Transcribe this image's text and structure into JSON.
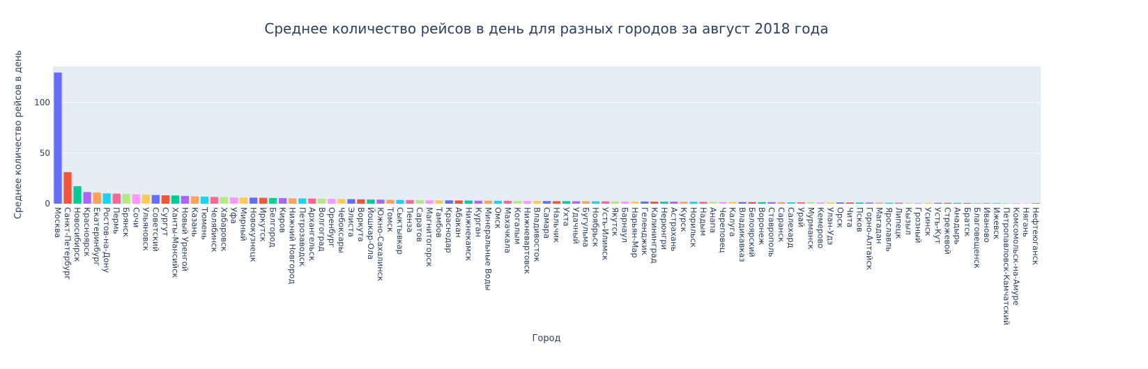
{
  "chart_data": {
    "type": "bar",
    "title": "Среднее количество рейсов в день для разных городов за август 2018 года",
    "xlabel": "Город",
    "ylabel": "Среднее количество рейсов в день",
    "ylim": [
      0,
      136
    ],
    "yticks": [
      0,
      50,
      100
    ],
    "grid": true,
    "legend": "none",
    "colors": [
      "#636efa",
      "#EF553B",
      "#00cc96",
      "#ab63fa",
      "#FFA15A",
      "#19d3f3",
      "#FF6692",
      "#B6E880",
      "#FF97FF",
      "#FECB52"
    ],
    "categories": [
      "Москва",
      "Санкт-Петербург",
      "Новосибирск",
      "Красноярск",
      "Екатеринбург",
      "Ростов-на-Дону",
      "Пермь",
      "Брянск",
      "Сочи",
      "Ульяновск",
      "Советский",
      "Сургут",
      "Ханты-Мансийск",
      "Новый Уренгой",
      "Казань",
      "Тюмень",
      "Челябинск",
      "Хабаровск",
      "Уфа",
      "Мирный",
      "Новокузнецк",
      "Иркутск",
      "Белгород",
      "Киров",
      "Нижний Новгород",
      "Петрозаводск",
      "Архангельск",
      "Волгоград",
      "Оренбург",
      "Чебоксары",
      "Элиста",
      "Воркута",
      "Йошкар-Ола",
      "Южно-Сахалинск",
      "Томск",
      "Сыктывкар",
      "Пенза",
      "Саратов",
      "Магнитогорск",
      "Тамбов",
      "Краснодар",
      "Абакан",
      "Нижнекамск",
      "Курган",
      "Минеральные Воды",
      "Омск",
      "Махачкала",
      "Когалым",
      "Нижневартовск",
      "Владивосток",
      "Самара",
      "Нальчик",
      "Ухта",
      "Удачный",
      "Бугульма",
      "Ноябрьск",
      "Усть-Илимск",
      "Якутск",
      "Барнаул",
      "Нарьян-Мар",
      "Геленджик",
      "Калининград",
      "Нерюнгри",
      "Астрахань",
      "Курск",
      "Норильск",
      "Надым",
      "Анапа",
      "Череповец",
      "Калуга",
      "Владикавказ",
      "Белоярский",
      "Воронеж",
      "Ставрополь",
      "Саранск",
      "Салехард",
      "Урай",
      "Мурманск",
      "Кемерово",
      "Улан-Удэ",
      "Орск",
      "Чита",
      "Псков",
      "Горно-Алтайск",
      "Магадан",
      "Ярославль",
      "Липецк",
      "Кызыл",
      "Грозный",
      "Усинск",
      "Усть-Кут",
      "Стрежевой",
      "Анадырь",
      "Братск",
      "Благовещенск",
      "Иваново",
      "Ижевск",
      "Петропавловск-Камчатский",
      "Комсомольск-на-Амуре",
      "Нягань",
      "Нефтеюганск"
    ],
    "values": [
      129.8,
      31.2,
      17.3,
      11.5,
      11.0,
      10.2,
      10.0,
      9.5,
      9.2,
      9.0,
      8.6,
      8.3,
      8.1,
      7.7,
      7.3,
      7.0,
      6.7,
      6.5,
      6.3,
      6.2,
      6.0,
      5.8,
      5.6,
      5.5,
      5.3,
      5.2,
      5.1,
      4.9,
      4.7,
      4.5,
      4.5,
      4.3,
      4.1,
      4.0,
      3.8,
      3.7,
      3.6,
      3.5,
      3.4,
      3.3,
      3.3,
      3.2,
      3.1,
      3.0,
      3.0,
      2.9,
      2.9,
      2.8,
      2.7,
      2.6,
      2.6,
      2.5,
      2.5,
      2.4,
      2.4,
      2.3,
      2.3,
      2.2,
      2.2,
      2.1,
      2.1,
      2.0,
      2.0,
      2.0,
      1.9,
      1.9,
      1.8,
      1.8,
      1.7,
      1.7,
      1.6,
      1.6,
      1.5,
      1.5,
      1.5,
      1.4,
      1.4,
      1.3,
      1.3,
      1.2,
      1.2,
      1.2,
      1.1,
      1.1,
      1.0,
      1.0,
      1.0,
      0.9,
      0.9,
      0.9,
      0.8,
      0.8,
      0.8,
      0.7,
      0.7,
      0.7,
      0.6,
      0.6,
      0.6,
      0.5,
      0.5
    ]
  }
}
